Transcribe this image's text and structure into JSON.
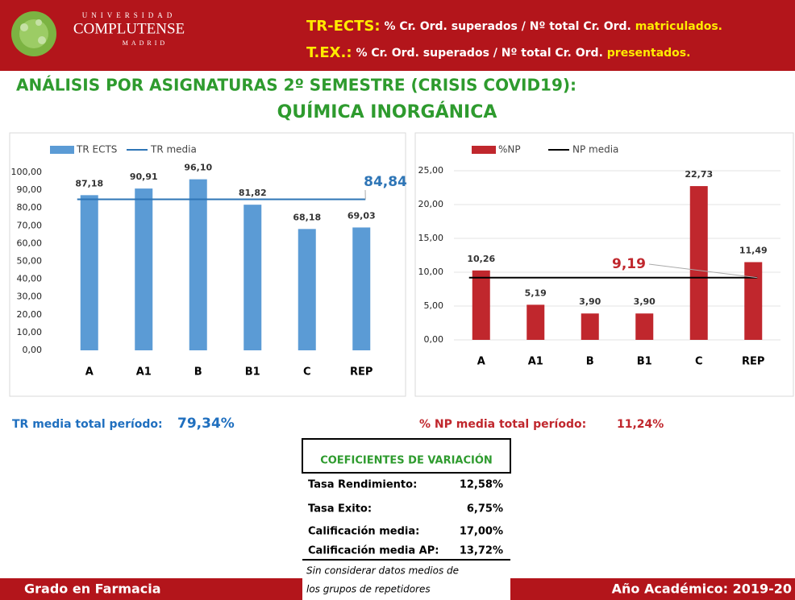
{
  "header": {
    "logo": {
      "top": "UNIVERSIDAD",
      "name": "COMPLUTENSE",
      "bottom": "MADRID"
    },
    "definitions": [
      {
        "term": "TR-ECTS:",
        "text": "% Cr. Ord. superados / Nº total Cr. Ord.",
        "emphasis": "matriculados."
      },
      {
        "term": "T.EX.:",
        "text": "% Cr. Ord. superados / Nº total Cr. Ord.",
        "emphasis": "presentados."
      }
    ],
    "title": "ANÁLISIS POR ASIGNATURAS 2º SEMESTRE (CRISIS COVID19):",
    "subtitle": "QUÍMICA INORGÁNICA"
  },
  "chart_data": [
    {
      "type": "bar",
      "categories": [
        "A",
        "A1",
        "B",
        "B1",
        "C",
        "REP"
      ],
      "series": [
        {
          "name": "TR ECTS",
          "color": "#5b9bd5",
          "values": [
            87.18,
            90.91,
            96.1,
            81.82,
            68.18,
            69.03
          ],
          "value_labels": [
            "87,18",
            "90,91",
            "96,10",
            "81,82",
            "68,18",
            "69,03"
          ]
        },
        {
          "name": "TR media",
          "type": "line",
          "color": "#2e75b6",
          "value": 84.84,
          "value_label": "84,84"
        }
      ],
      "ylim": [
        0,
        100
      ],
      "yticks": [
        {
          "value": 0,
          "label": "0,00"
        },
        {
          "value": 10,
          "label": "10,00"
        },
        {
          "value": 20,
          "label": "20,00"
        },
        {
          "value": 30,
          "label": "30,00"
        },
        {
          "value": 40,
          "label": "40,00"
        },
        {
          "value": 50,
          "label": "50,00"
        },
        {
          "value": 60,
          "label": "60,00"
        },
        {
          "value": 70,
          "label": "70,00"
        },
        {
          "value": 80,
          "label": "80,00"
        },
        {
          "value": 90,
          "label": "90,00"
        },
        {
          "value": 100,
          "label": "100,00"
        }
      ],
      "grid": false,
      "legend": "top-left"
    },
    {
      "type": "bar",
      "categories": [
        "A",
        "A1",
        "B",
        "B1",
        "C",
        "REP"
      ],
      "series": [
        {
          "name": "%NP",
          "color": "#c0272d",
          "values": [
            10.26,
            5.19,
            3.9,
            3.9,
            22.73,
            11.49
          ],
          "value_labels": [
            "10,26",
            "5,19",
            "3,90",
            "3,90",
            "22,73",
            "11,49"
          ]
        },
        {
          "name": "NP media",
          "type": "line",
          "color": "#000000",
          "value": 9.19,
          "value_label": "9,19"
        }
      ],
      "ylim": [
        0,
        25
      ],
      "yticks": [
        {
          "value": 0,
          "label": "0,00"
        },
        {
          "value": 5,
          "label": "5,00"
        },
        {
          "value": 10,
          "label": "10,00"
        },
        {
          "value": 15,
          "label": "15,00"
        },
        {
          "value": 20,
          "label": "20,00"
        },
        {
          "value": 25,
          "label": "25,00"
        }
      ],
      "grid": true,
      "legend": "top-left"
    }
  ],
  "summary": [
    {
      "label": "TR media total período:",
      "value": "79,34%"
    },
    {
      "label": "% NP media total período:",
      "value": "11,24%"
    }
  ],
  "table": {
    "title": "COEFICIENTES DE VARIACIÓN",
    "rows": [
      [
        "Tasa Rendimiento:",
        "12,58%"
      ],
      [
        "Tasa Exito:",
        "6,75%"
      ],
      [
        "Calificación media:",
        "17,00%"
      ],
      [
        "Calificación media AP:",
        "13,72%"
      ]
    ],
    "note": [
      "Sin considerar datos medios de",
      "los grupos de repetidores"
    ]
  },
  "footer": {
    "left": "Grado en Farmacia",
    "right": "Año Académico: 2019-20"
  }
}
